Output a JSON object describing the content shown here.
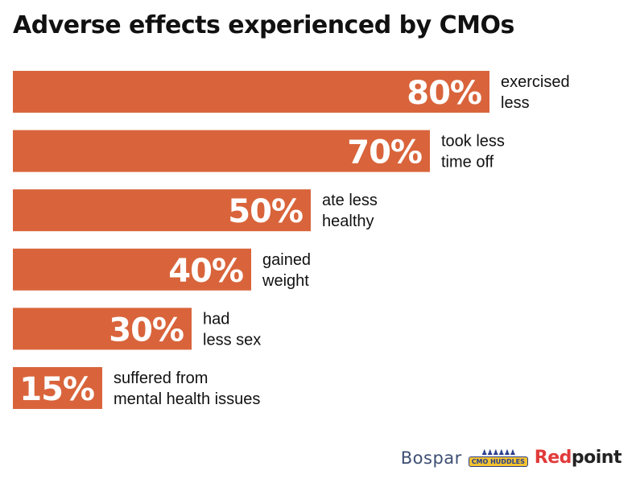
{
  "chart_data": {
    "type": "bar",
    "orientation": "horizontal",
    "title": "Adverse effects experienced by CMOs",
    "categories": [
      [
        "exercised",
        "less"
      ],
      [
        "took less",
        "time off"
      ],
      [
        "ate less",
        "healthy"
      ],
      [
        "gained",
        "weight"
      ],
      [
        "had",
        "less sex"
      ],
      [
        "suffered from",
        "mental health issues"
      ]
    ],
    "values": [
      80,
      70,
      50,
      40,
      30,
      15
    ],
    "value_labels": [
      "80%",
      "70%",
      "50%",
      "40%",
      "30%",
      "15%"
    ],
    "unit": "%",
    "xlim": [
      0,
      100
    ],
    "bar_color": "#d9643b",
    "value_label_color": "#ffffff",
    "category_label_color": "#111111",
    "grid": false,
    "legend": "none"
  },
  "footer": {
    "logos": {
      "bospar": "Bospar",
      "cmo_huddles": "CMO HUDDLES",
      "redpoint_prefix": "Red",
      "redpoint_suffix": "point"
    }
  }
}
